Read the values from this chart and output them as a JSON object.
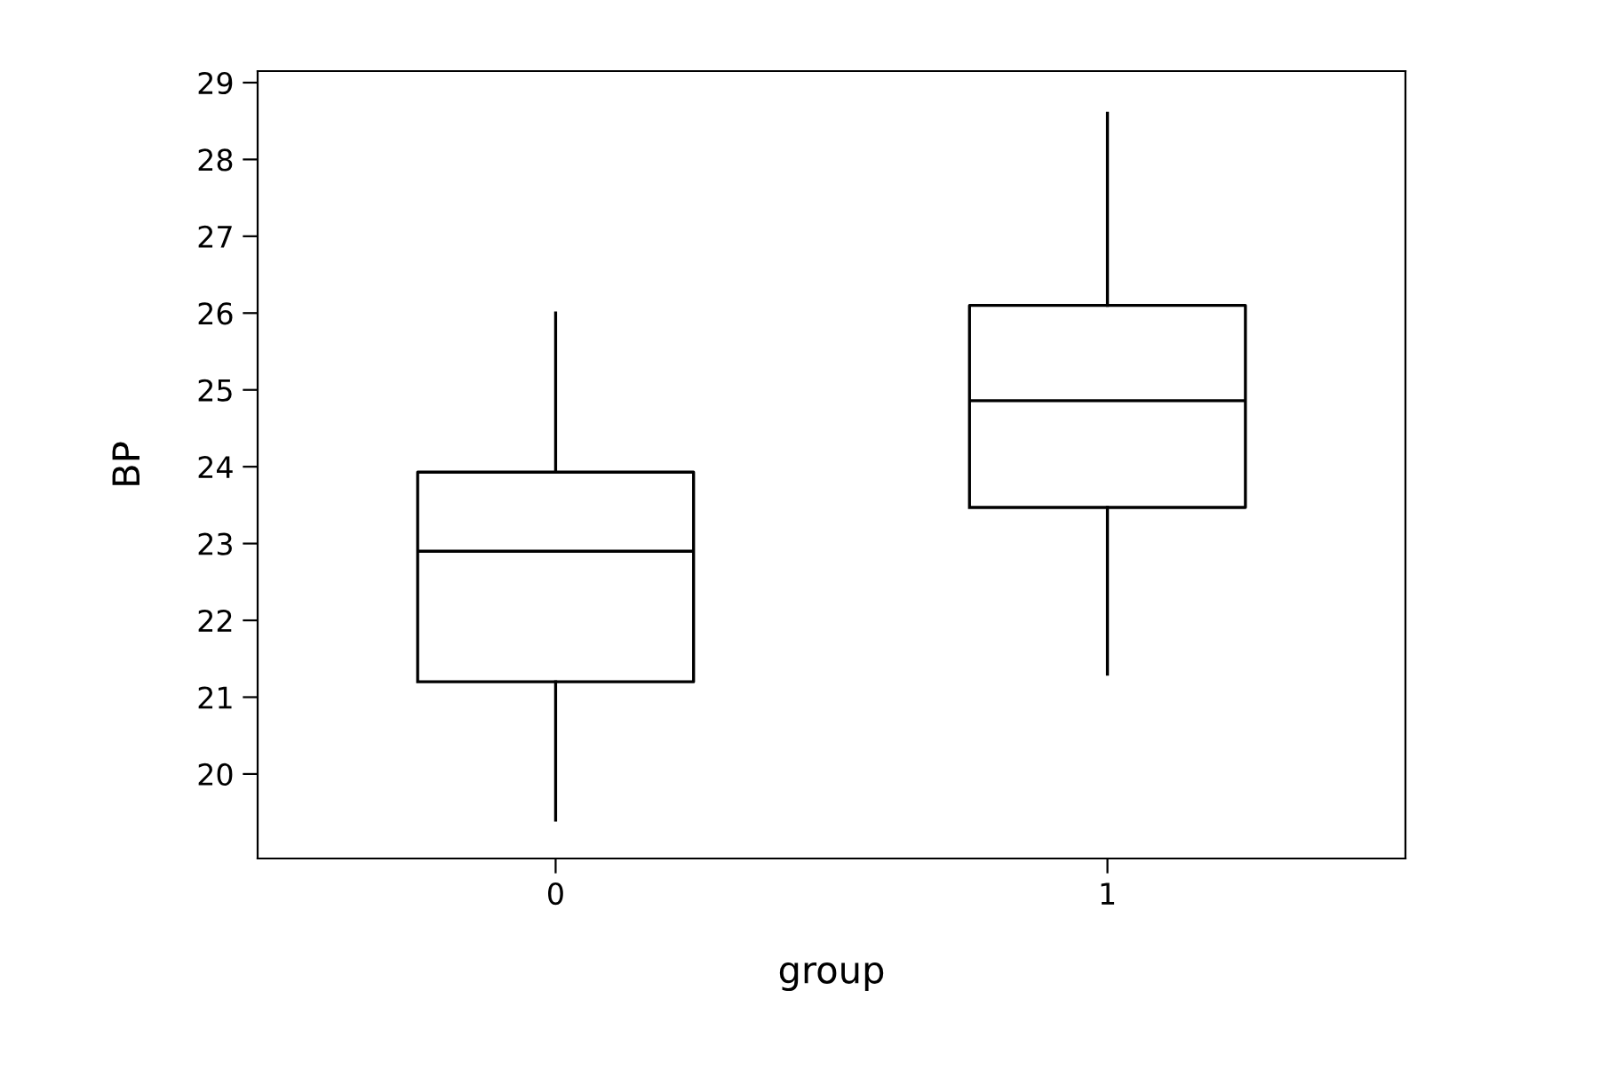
{
  "chart_data": {
    "type": "box",
    "xlabel": "group",
    "ylabel": "BP",
    "categories": [
      "0",
      "1"
    ],
    "boxes": [
      {
        "low": 19.4,
        "q1": 21.2,
        "median": 22.9,
        "q3": 23.93,
        "high": 26.0
      },
      {
        "low": 21.3,
        "q1": 23.47,
        "median": 24.86,
        "q3": 26.1,
        "high": 28.6
      }
    ],
    "ylim": [
      18.9,
      29.15
    ],
    "yticks": [
      20,
      21,
      22,
      23,
      24,
      25,
      26,
      27,
      28,
      29
    ],
    "grid": false,
    "color": "#000000"
  }
}
